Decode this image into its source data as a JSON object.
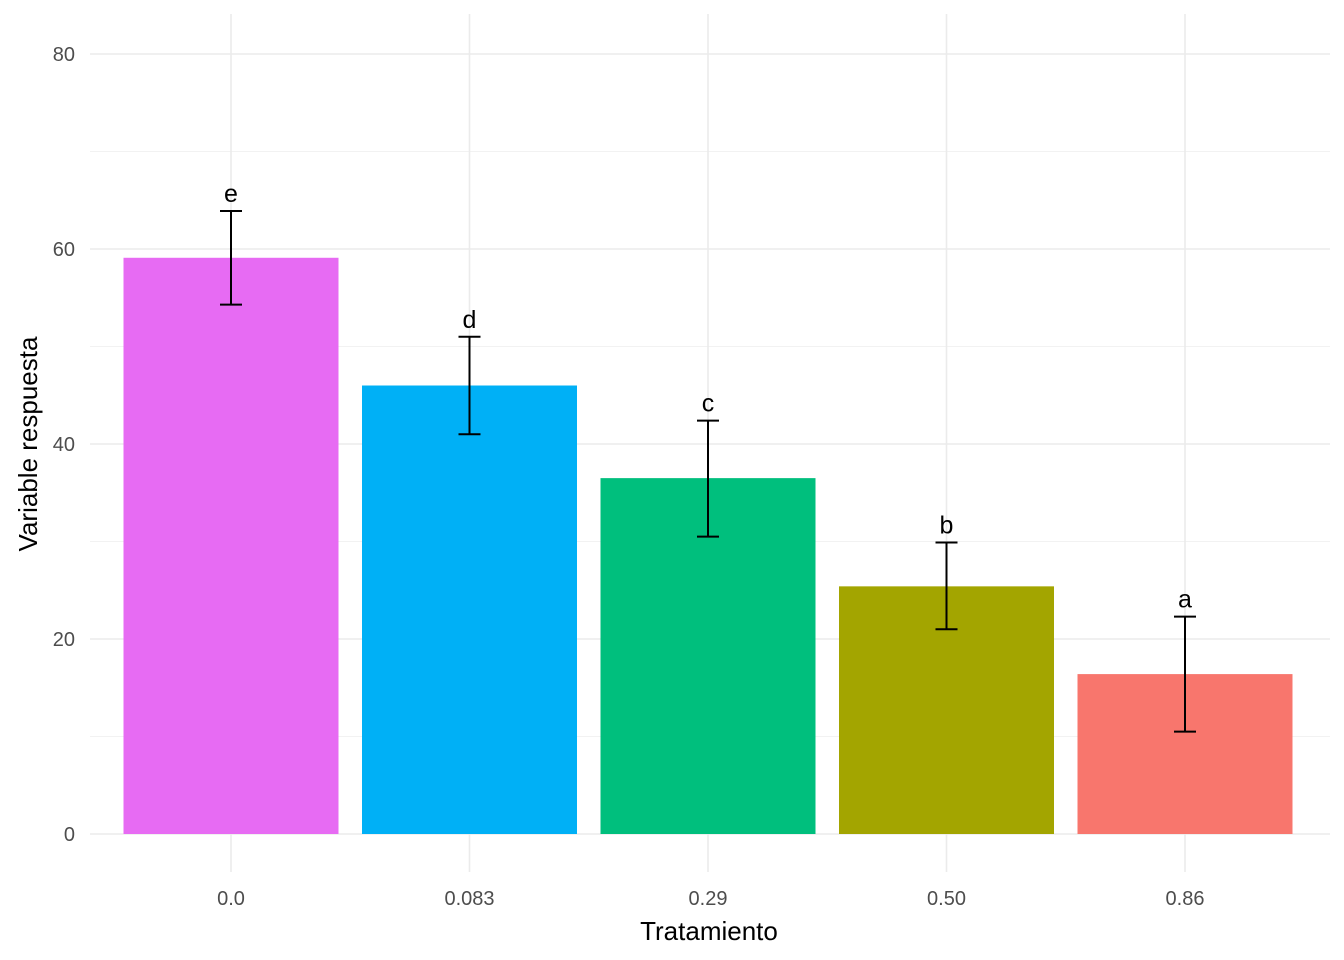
{
  "chart_data": {
    "type": "bar",
    "xlabel": "Tratamiento",
    "ylabel": "Variable respuesta",
    "ylim": [
      0,
      80
    ],
    "yticks": [
      "0",
      "20",
      "40",
      "60",
      "80"
    ],
    "categories": [
      "0.0",
      "0.083",
      "0.29",
      "0.50",
      "0.86"
    ],
    "values": [
      59.1,
      46.0,
      36.5,
      25.4,
      16.4
    ],
    "error_low": [
      54.3,
      41.0,
      30.5,
      21.0,
      10.5
    ],
    "error_high": [
      63.9,
      51.0,
      42.4,
      29.9,
      22.3
    ],
    "labels": [
      "e",
      "d",
      "c",
      "b",
      "a"
    ],
    "colors": [
      "#E76BF3",
      "#00B0F6",
      "#00BF7D",
      "#A3A500",
      "#F8766D"
    ],
    "grid": true,
    "legend": "none"
  }
}
